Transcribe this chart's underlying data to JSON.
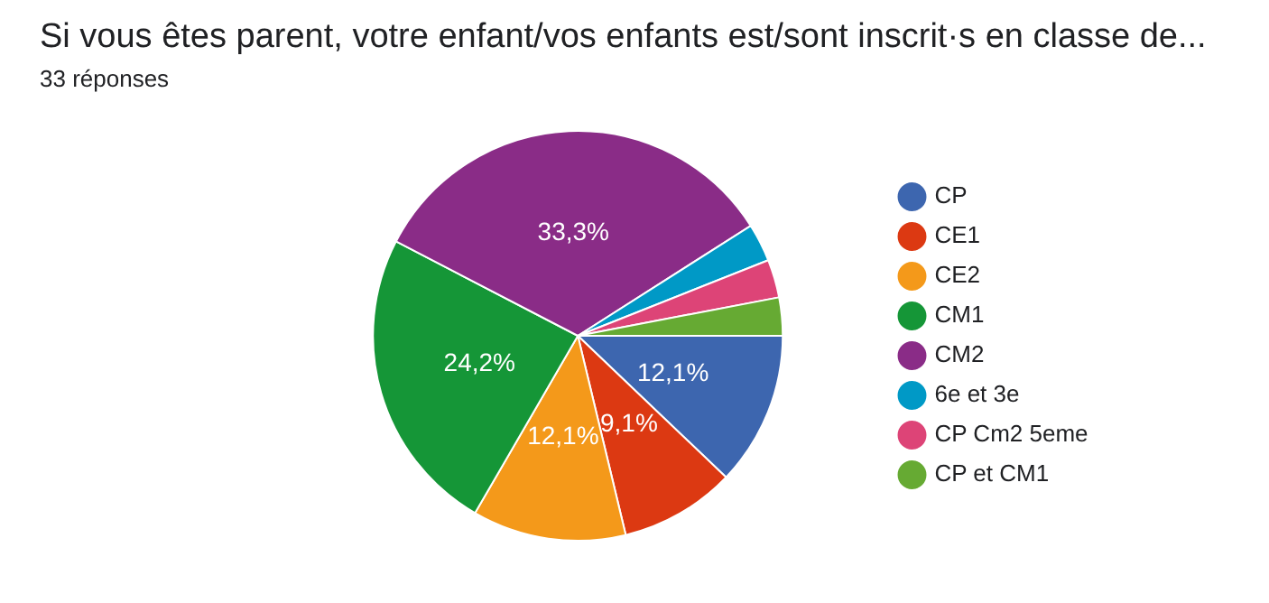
{
  "chart_data": {
    "type": "pie",
    "title": "Si vous êtes parent, votre enfant/vos enfants est/sont inscrit·s en classe de...",
    "subtitle": "33 réponses",
    "categories": [
      "CP",
      "CE1",
      "CE2",
      "CM1",
      "CM2",
      "6e et 3e",
      "CP Cm2 5eme",
      "CP et CM1"
    ],
    "values": [
      12.1,
      9.1,
      12.1,
      24.2,
      33.3,
      3.0,
      3.0,
      3.0
    ],
    "colors": [
      "#3d66af",
      "#dc3912",
      "#f4991a",
      "#159637",
      "#8a2c87",
      "#0099c6",
      "#dd4477",
      "#66aa33"
    ],
    "value_labels": [
      "12,1%",
      "9,1%",
      "12,1%",
      "24,2%",
      "33,3%",
      null,
      null,
      null
    ],
    "legend": "right"
  }
}
